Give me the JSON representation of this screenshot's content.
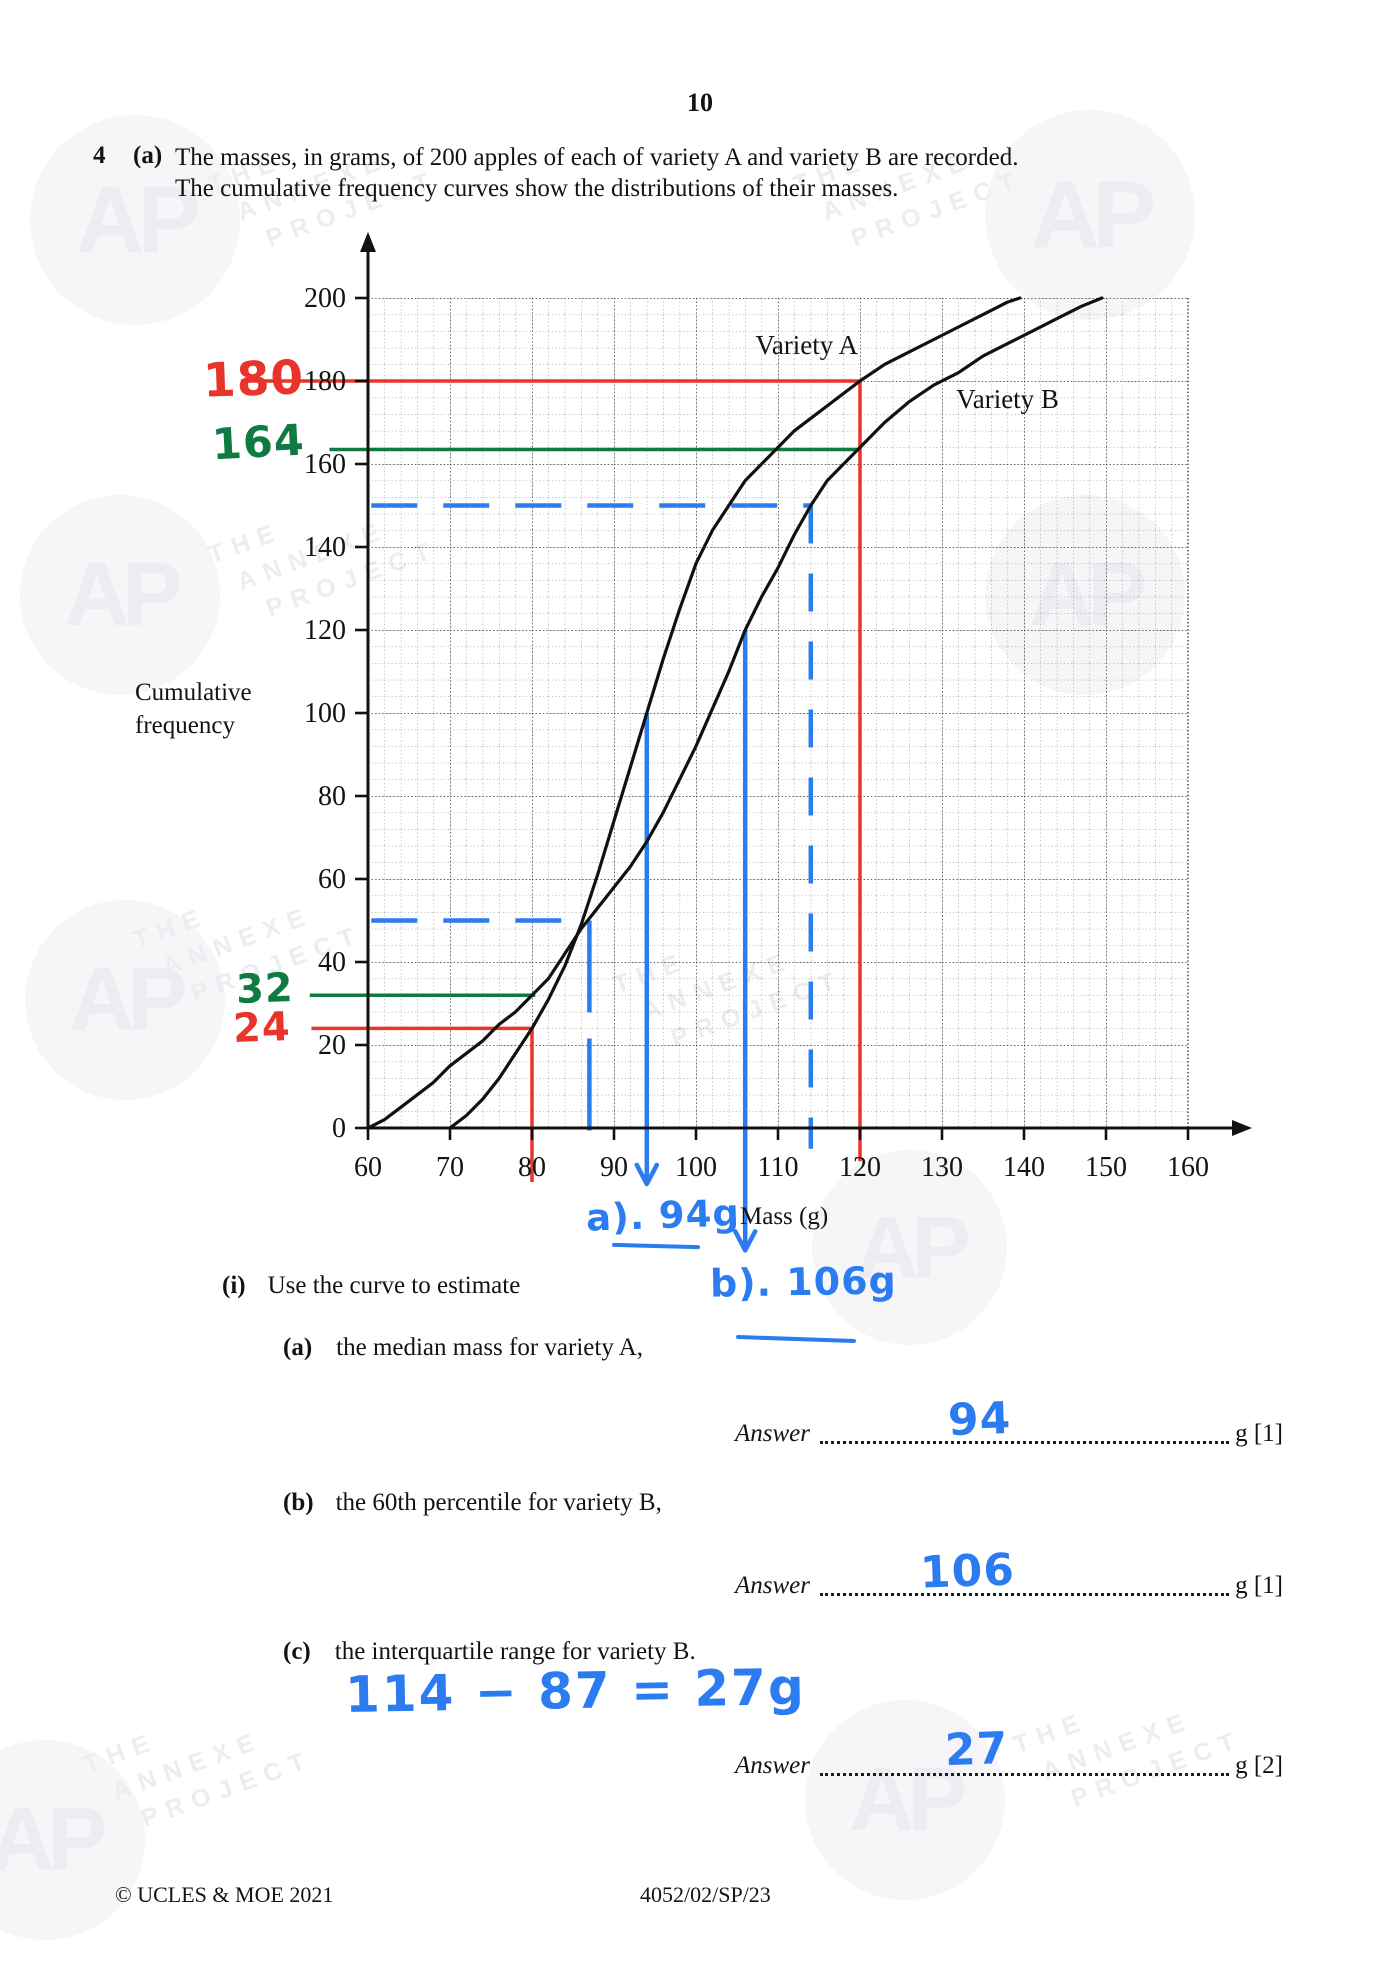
{
  "page": {
    "number": "10",
    "question_number": "4",
    "part_label": "(a)",
    "intro_line1": "The masses, in grams, of 200 apples of each of variety A and variety B are recorded.",
    "intro_line2": "The cumulative frequency curves show the distributions of their masses.",
    "sub_i_label": "(i)",
    "sub_i_text": "Use the curve to estimate",
    "parts": [
      {
        "label": "(a)",
        "text": "the median mass for variety A,",
        "answer_word": "Answer",
        "answer_value": "94",
        "answer_suffix": "g [1]"
      },
      {
        "label": "(b)",
        "text": "the 60th percentile for variety B,",
        "answer_word": "Answer",
        "answer_value": "106",
        "answer_suffix": "g [1]"
      },
      {
        "label": "(c)",
        "text": "the interquartile range for variety B.",
        "answer_word": "Answer",
        "answer_value": "27",
        "answer_suffix": "g [2]"
      }
    ],
    "footer_left": "© UCLES & MOE 2021",
    "footer_center": "4052/02/SP/23"
  },
  "watermark": {
    "monogram": "AP",
    "lines": [
      "THE",
      "ANNEXE",
      "PROJECT"
    ]
  },
  "handwriting": {
    "margin_180": "180",
    "margin_164": "164",
    "margin_32": "32",
    "margin_24": "24",
    "part_a_note": "a). 94g",
    "part_b_note": "b). 106g",
    "working_c": "114 − 87 = 27g",
    "answer_a": "94",
    "answer_b": "106",
    "answer_c": "27"
  },
  "chart_data": {
    "type": "line",
    "title": "",
    "xlabel": "Mass (g)",
    "ylabel_lines": [
      "Cumulative",
      "frequency"
    ],
    "xlim": [
      60,
      160
    ],
    "ylim": [
      0,
      200
    ],
    "x_ticks": [
      60,
      70,
      80,
      90,
      100,
      110,
      120,
      130,
      140,
      150,
      160
    ],
    "y_ticks": [
      0,
      20,
      40,
      60,
      80,
      100,
      120,
      140,
      160,
      180,
      200
    ],
    "grid": {
      "minor_step_x": 2,
      "minor_step_y": 4,
      "major_step_x": 10,
      "major_step_y": 20,
      "style": "fine dotted"
    },
    "legend_position": "labels-on-curves",
    "series": [
      {
        "name": "Variety A",
        "x": [
          70,
          72,
          74,
          76,
          78,
          80,
          82,
          84,
          86,
          88,
          90,
          92,
          94,
          96,
          98,
          100,
          102,
          104,
          106,
          108,
          110,
          112,
          114,
          116,
          118,
          120,
          123,
          126,
          129,
          132,
          135,
          138,
          139.5
        ],
        "y": [
          0,
          3,
          7,
          12,
          18,
          24,
          31,
          39,
          49,
          61,
          74,
          87,
          100,
          113,
          125,
          136,
          144,
          150,
          156,
          160,
          164,
          168,
          171,
          174,
          177,
          180,
          184,
          187,
          190,
          193,
          196,
          199,
          200
        ]
      },
      {
        "name": "Variety B",
        "x": [
          60,
          62,
          64,
          66,
          68,
          70,
          72,
          74,
          76,
          78,
          80,
          82,
          84,
          86,
          88,
          90,
          92,
          94,
          96,
          98,
          100,
          102,
          104,
          106,
          108,
          110,
          112,
          114,
          116,
          118,
          120,
          123,
          126,
          129,
          132,
          135,
          138,
          141,
          144,
          147,
          149.5
        ],
        "y": [
          0,
          2,
          5,
          8,
          11,
          15,
          18,
          21,
          25,
          28,
          32,
          36,
          42,
          48,
          53,
          58,
          63,
          69,
          76,
          84,
          92,
          101,
          110,
          120,
          128,
          135,
          143,
          150,
          156,
          160,
          164,
          170,
          175,
          179,
          182,
          186,
          189,
          192,
          195,
          198,
          200
        ]
      }
    ],
    "series_labels": [
      {
        "text": "Variety A",
        "mass": 113.5,
        "cf": 186.5
      },
      {
        "text": "Variety B",
        "mass": 138,
        "cf": 173.5
      }
    ],
    "key_readings": {
      "median_A": {
        "mass": 94,
        "cf": 100
      },
      "percentile60_B": {
        "mass": 106,
        "cf": 120
      },
      "Q1_B": {
        "mass": 87,
        "cf": 50
      },
      "Q3_B": {
        "mass": 114,
        "cf": 150
      },
      "A_at_120": 180,
      "B_at_120": 164,
      "A_at_80": 24,
      "B_at_80": 32
    },
    "annotation_lines": [
      {
        "color": "#e8342a",
        "width": 3.5,
        "from": [
          44.5,
          180
        ],
        "to": [
          120,
          180
        ]
      },
      {
        "color": "#e8342a",
        "width": 3.5,
        "from": [
          120,
          180
        ],
        "to": [
          120,
          -8
        ]
      },
      {
        "color": "#0f7a42",
        "width": 3.5,
        "from": [
          55.3,
          163.5
        ],
        "to": [
          120,
          163.5
        ]
      },
      {
        "color": "#0f7a42",
        "width": 3.5,
        "from": [
          52.9,
          32
        ],
        "to": [
          80.4,
          32
        ]
      },
      {
        "color": "#e8342a",
        "width": 3.5,
        "from": [
          53.1,
          24
        ],
        "to": [
          80,
          24
        ]
      },
      {
        "color": "#e8342a",
        "width": 3.5,
        "from": [
          80,
          24
        ],
        "to": [
          80,
          -13
        ]
      },
      {
        "color": "#2b7cf0",
        "width": 4.5,
        "dash": "46 26",
        "from": [
          60.4,
          150
        ],
        "to": [
          114,
          150
        ]
      },
      {
        "color": "#2b7cf0",
        "width": 4.5,
        "dash": "38 30",
        "from": [
          114,
          150
        ],
        "to": [
          114,
          -5
        ]
      },
      {
        "color": "#2b7cf0",
        "width": 4.5,
        "dash": "46 26",
        "from": [
          60.4,
          50
        ],
        "to": [
          87,
          50
        ]
      },
      {
        "color": "#2b7cf0",
        "width": 4.5,
        "dash": "92 26",
        "from": [
          87,
          50
        ],
        "to": [
          87,
          -6.5
        ]
      },
      {
        "color": "#2b7cf0",
        "width": 4.5,
        "arrow": true,
        "from": [
          94,
          100
        ],
        "to": [
          94,
          -13
        ]
      },
      {
        "color": "#2b7cf0",
        "width": 4.5,
        "arrow": true,
        "from": [
          106,
          120
        ],
        "to": [
          106,
          -29
        ]
      }
    ]
  }
}
